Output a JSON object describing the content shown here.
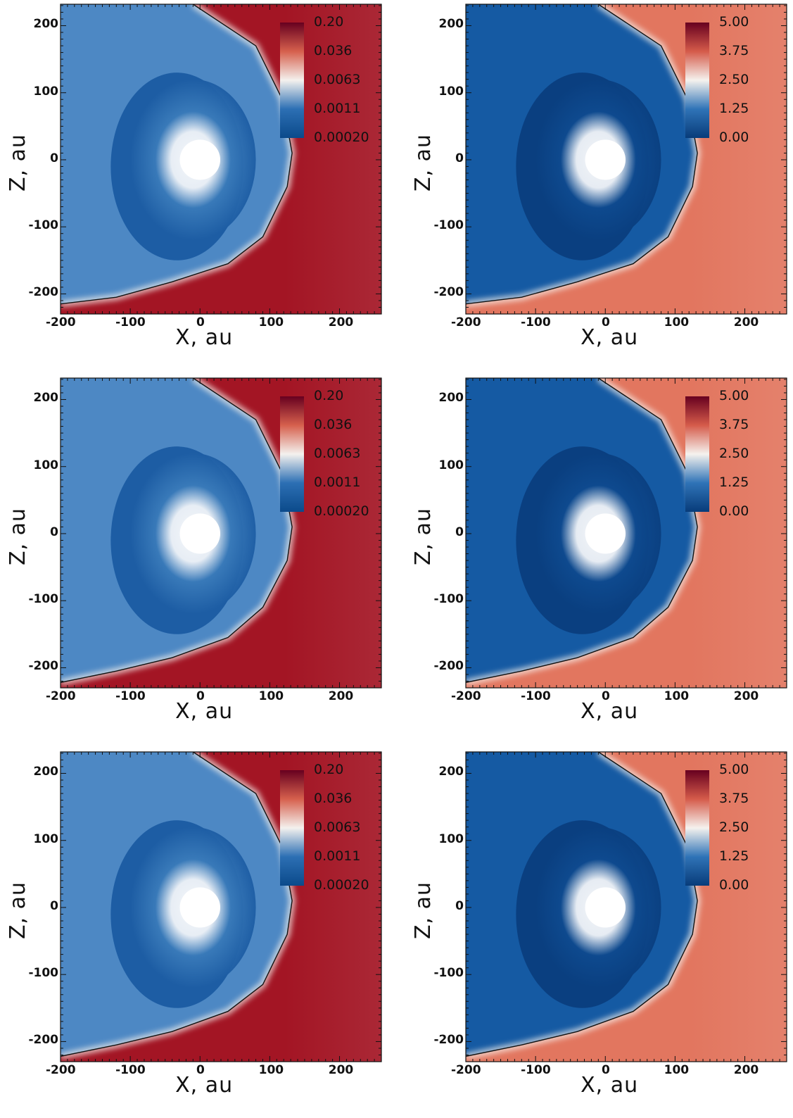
{
  "chart_data": [
    {
      "type": "heatmap",
      "panel": 1,
      "xlabel": "X, au",
      "ylabel": "Z, au",
      "xlim": [
        -200,
        260
      ],
      "ylim": [
        -230,
        232
      ],
      "xticks": [
        "-200",
        "-100",
        "0",
        "100",
        "200"
      ],
      "yticks": [
        "200",
        "100",
        "0",
        "-100",
        "-200"
      ],
      "colorbar": {
        "scale": "log",
        "min": 0.0002,
        "max": 0.2,
        "colors": [
          "#0b4a8b",
          "#2c6fb4",
          "#f4f1ee",
          "#d6604d",
          "#67001f"
        ],
        "labels": [
          "0.20",
          "0.036",
          "0.0063",
          "0.0011",
          "0.00020"
        ]
      },
      "colors": {
        "inner": "#1d5da4",
        "mid": "#3a7bba",
        "sheath": "#4d88c4",
        "outer": "#a31524",
        "center": "#ffffff"
      },
      "variant": 1
    },
    {
      "type": "heatmap",
      "panel": 2,
      "xlabel": "X, au",
      "ylabel": "Z, au",
      "xlim": [
        -200,
        260
      ],
      "ylim": [
        -230,
        232
      ],
      "xticks": [
        "-200",
        "-100",
        "0",
        "100",
        "200"
      ],
      "yticks": [
        "200",
        "100",
        "0",
        "-100",
        "-200"
      ],
      "colorbar": {
        "scale": "linear",
        "min": 0,
        "max": 5,
        "colors": [
          "#083c7a",
          "#2f73b7",
          "#f5f2ee",
          "#d55b4a",
          "#67001f"
        ],
        "labels": [
          "5.00",
          "3.75",
          "2.50",
          "1.25",
          "0.00"
        ]
      },
      "colors": {
        "inner": "#0a3f80",
        "mid": "#0e4a8f",
        "sheath": "#155aa3",
        "outer": "#e2765f",
        "center": "#ffffff"
      },
      "variant": 1
    },
    {
      "type": "heatmap",
      "panel": 3,
      "xlabel": "X, au",
      "ylabel": "Z, au",
      "xlim": [
        -200,
        260
      ],
      "ylim": [
        -230,
        232
      ],
      "xticks": [
        "-200",
        "-100",
        "0",
        "100",
        "200"
      ],
      "yticks": [
        "200",
        "100",
        "0",
        "-100",
        "-200"
      ],
      "colorbar": {
        "scale": "log",
        "min": 0.0002,
        "max": 0.2,
        "colors": [
          "#0b4a8b",
          "#2c6fb4",
          "#f4f1ee",
          "#d6604d",
          "#67001f"
        ],
        "labels": [
          "0.20",
          "0.036",
          "0.0063",
          "0.0011",
          "0.00020"
        ]
      },
      "colors": {
        "inner": "#1d5da4",
        "mid": "#3a7bba",
        "sheath": "#4d88c4",
        "outer": "#a31524",
        "center": "#ffffff"
      },
      "variant": 2
    },
    {
      "type": "heatmap",
      "panel": 4,
      "xlabel": "X, au",
      "ylabel": "Z, au",
      "xlim": [
        -200,
        260
      ],
      "ylim": [
        -230,
        232
      ],
      "xticks": [
        "-200",
        "-100",
        "0",
        "100",
        "200"
      ],
      "yticks": [
        "200",
        "100",
        "0",
        "-100",
        "-200"
      ],
      "colorbar": {
        "scale": "linear",
        "min": 0,
        "max": 5,
        "colors": [
          "#083c7a",
          "#2f73b7",
          "#f5f2ee",
          "#d55b4a",
          "#67001f"
        ],
        "labels": [
          "5.00",
          "3.75",
          "2.50",
          "1.25",
          "0.00"
        ]
      },
      "colors": {
        "inner": "#0a3f80",
        "mid": "#0e4a8f",
        "sheath": "#155aa3",
        "outer": "#e2765f",
        "center": "#ffffff"
      },
      "variant": 2
    },
    {
      "type": "heatmap",
      "panel": 5,
      "xlabel": "X, au",
      "ylabel": "Z, au",
      "xlim": [
        -200,
        260
      ],
      "ylim": [
        -230,
        232
      ],
      "xticks": [
        "-200",
        "-100",
        "0",
        "100",
        "200"
      ],
      "yticks": [
        "200",
        "100",
        "0",
        "-100",
        "-200"
      ],
      "colorbar": {
        "scale": "log",
        "min": 0.0002,
        "max": 0.2,
        "colors": [
          "#0b4a8b",
          "#2c6fb4",
          "#f4f1ee",
          "#d6604d",
          "#67001f"
        ],
        "labels": [
          "0.20",
          "0.036",
          "0.0063",
          "0.0011",
          "0.00020"
        ]
      },
      "colors": {
        "inner": "#1d5da4",
        "mid": "#3a7bba",
        "sheath": "#4d88c4",
        "outer": "#a31524",
        "center": "#ffffff"
      },
      "variant": 3
    },
    {
      "type": "heatmap",
      "panel": 6,
      "xlabel": "X, au",
      "ylabel": "Z, au",
      "xlim": [
        -200,
        260
      ],
      "ylim": [
        -230,
        232
      ],
      "xticks": [
        "-200",
        "-100",
        "0",
        "100",
        "200"
      ],
      "yticks": [
        "200",
        "100",
        "0",
        "-100",
        "-200"
      ],
      "colorbar": {
        "scale": "linear",
        "min": 0,
        "max": 5,
        "colors": [
          "#083c7a",
          "#2f73b7",
          "#f5f2ee",
          "#d55b4a",
          "#67001f"
        ],
        "labels": [
          "5.00",
          "3.75",
          "2.50",
          "1.25",
          "0.00"
        ]
      },
      "colors": {
        "inner": "#0a3f80",
        "mid": "#0e4a8f",
        "sheath": "#155aa3",
        "outer": "#e2765f",
        "center": "#ffffff"
      },
      "variant": 3
    }
  ]
}
